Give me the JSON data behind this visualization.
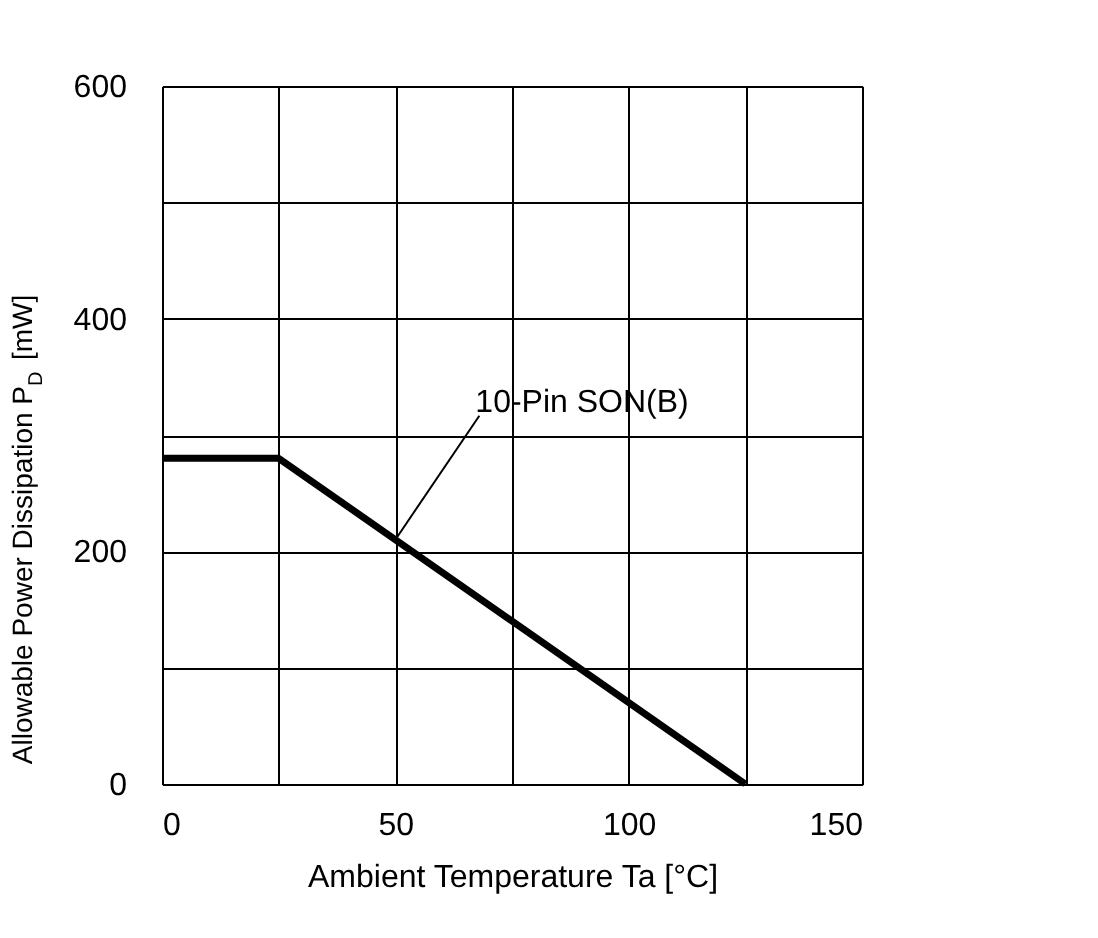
{
  "chart_data": {
    "type": "line",
    "x": [
      0,
      25,
      125
    ],
    "series": [
      {
        "color": "#000000",
        "values": [
          280,
          280,
          0
        ]
      }
    ],
    "xlabel": "Ambient Temperature  Ta [°C]",
    "ylabel": "Allowable Power Dissipation   P$_{D}$ [mW]",
    "xlim": [
      0,
      150
    ],
    "ylim": [
      0,
      600
    ],
    "xticks": [
      0,
      {
        "value": 25,
        "label": null
      },
      50,
      {
        "value": 75,
        "label": null
      },
      100,
      {
        "value": 125,
        "label": null
      },
      150
    ],
    "yticks": [
      0,
      {
        "value": 100,
        "label": null
      },
      200,
      {
        "value": 300,
        "label": null
      },
      400,
      {
        "value": 500,
        "label": null
      },
      600
    ],
    "grid": true,
    "marker": "none",
    "line_style": "solid",
    "annotations": [
      {
        "text": "10-Pin SON(B)",
        "x": 50,
        "y": 210
      }
    ]
  }
}
